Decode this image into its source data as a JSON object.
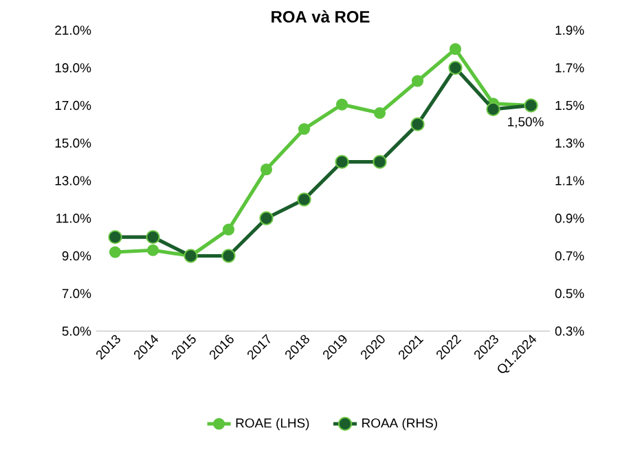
{
  "chart_data": {
    "type": "line",
    "title": "ROA và ROE",
    "categories": [
      "2013",
      "2014",
      "2015",
      "2016",
      "2017",
      "2018",
      "2019",
      "2020",
      "2021",
      "2022",
      "2023",
      "Q1.2024"
    ],
    "series": [
      {
        "name": "ROAE (LHS)",
        "color": "#5cc43c",
        "values": [
          9.2,
          9.3,
          9.0,
          10.4,
          13.6,
          15.75,
          17.05,
          16.6,
          18.3,
          20.0,
          17.1,
          17.0
        ]
      },
      {
        "name": "ROAA (RHS)",
        "color": "#1b5e2c",
        "axis": "y2",
        "values": [
          0.8,
          0.8,
          0.7,
          0.7,
          0.9,
          1.0,
          1.2,
          1.2,
          1.4,
          1.7,
          1.48,
          1.5
        ]
      }
    ],
    "ylim": [
      5,
      21
    ],
    "yticks": [
      {
        "value": 5,
        "label": "5.0%"
      },
      {
        "value": 7,
        "label": "7.0%"
      },
      {
        "value": 9,
        "label": "9.0%"
      },
      {
        "value": 11,
        "label": "11.0%"
      },
      {
        "value": 13,
        "label": "13.0%"
      },
      {
        "value": 15,
        "label": "15.0%"
      },
      {
        "value": 17,
        "label": "17.0%"
      },
      {
        "value": 19,
        "label": "19.0%"
      },
      {
        "value": 21,
        "label": "21.0%"
      }
    ],
    "y2lim": [
      0.3,
      1.9
    ],
    "y2ticks": [
      {
        "value": 0.3,
        "label": "0.3%"
      },
      {
        "value": 0.5,
        "label": "0.5%"
      },
      {
        "value": 0.7,
        "label": "0.7%"
      },
      {
        "value": 0.9,
        "label": "0.9%"
      },
      {
        "value": 1.1,
        "label": "1.1%"
      },
      {
        "value": 1.3,
        "label": "1.3%"
      },
      {
        "value": 1.5,
        "label": "1.5%"
      },
      {
        "value": 1.7,
        "label": "1.7%"
      },
      {
        "value": 1.9,
        "label": "1.9%"
      }
    ],
    "annotations": [
      "1,50%"
    ],
    "legend": "bottom",
    "marker": "circle",
    "grid": false
  }
}
